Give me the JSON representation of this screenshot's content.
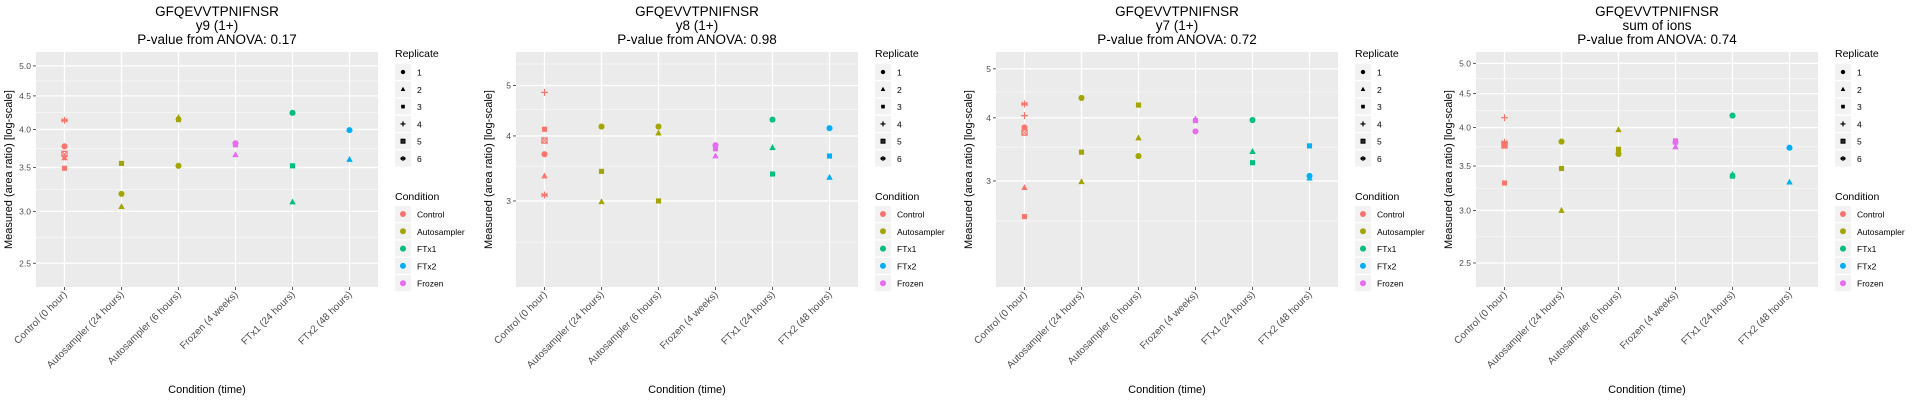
{
  "legend": {
    "replicate_title": "Replicate",
    "replicates": [
      {
        "label": "1",
        "shape": "circle"
      },
      {
        "label": "2",
        "shape": "triangle"
      },
      {
        "label": "3",
        "shape": "square"
      },
      {
        "label": "4",
        "shape": "plus"
      },
      {
        "label": "5",
        "shape": "square-cross"
      },
      {
        "label": "6",
        "shape": "asterisk"
      }
    ],
    "condition_title": "Condition",
    "conditions": [
      {
        "label": "Control",
        "color": "#F8766D"
      },
      {
        "label": "Autosampler",
        "color": "#A3A500"
      },
      {
        "label": "FTx1",
        "color": "#00BF7D"
      },
      {
        "label": "FTx2",
        "color": "#00B0F6"
      },
      {
        "label": "Frozen",
        "color": "#E76BF3"
      }
    ]
  },
  "chart_data": [
    {
      "type": "scatter",
      "title": "GFQEVVTPNIFNSR",
      "subtitle": "y9 (1+)",
      "pvalue_label": "P-value from ANOVA: 0.17",
      "xlabel": "Condition (time)",
      "ylabel": "Measured (area ratio) [log-scale]",
      "y_scale": "log",
      "ylim": [
        2.3,
        5.25
      ],
      "y_ticks": [
        2.5,
        3.0,
        3.5,
        4.0,
        4.5,
        5.0
      ],
      "y_tick_labels": [
        "2.5",
        "3.0",
        "3.5",
        "4.0",
        "4.5",
        "5.0"
      ],
      "grid": true,
      "legend_position": "right",
      "categories": [
        "Control (0 hour)",
        "Autosampler (24 hours)",
        "Autosampler (6 hours)",
        "Frozen (4 weeks)",
        "FTx1 (24 hours)",
        "FTx2 (48 hours)"
      ],
      "points": [
        {
          "x": 0,
          "y": 4.13,
          "replicate": 6,
          "condition": "Control"
        },
        {
          "x": 0,
          "y": 3.77,
          "replicate": 1,
          "condition": "Control"
        },
        {
          "x": 0,
          "y": 3.67,
          "replicate": 5,
          "condition": "Control"
        },
        {
          "x": 0,
          "y": 3.62,
          "replicate": 2,
          "condition": "Control"
        },
        {
          "x": 0,
          "y": 3.49,
          "replicate": 3,
          "condition": "Control"
        },
        {
          "x": 1,
          "y": 3.55,
          "replicate": 3,
          "condition": "Autosampler"
        },
        {
          "x": 1,
          "y": 3.19,
          "replicate": 1,
          "condition": "Autosampler"
        },
        {
          "x": 1,
          "y": 3.05,
          "replicate": 2,
          "condition": "Autosampler"
        },
        {
          "x": 2,
          "y": 4.17,
          "replicate": 2,
          "condition": "Autosampler"
        },
        {
          "x": 2,
          "y": 4.14,
          "replicate": 3,
          "condition": "Autosampler"
        },
        {
          "x": 2,
          "y": 3.52,
          "replicate": 1,
          "condition": "Autosampler"
        },
        {
          "x": 3,
          "y": 3.81,
          "replicate": 1,
          "condition": "Frozen"
        },
        {
          "x": 3,
          "y": 3.79,
          "replicate": 3,
          "condition": "Frozen"
        },
        {
          "x": 3,
          "y": 3.66,
          "replicate": 2,
          "condition": "Frozen"
        },
        {
          "x": 4,
          "y": 4.24,
          "replicate": 1,
          "condition": "FTx1"
        },
        {
          "x": 4,
          "y": 3.52,
          "replicate": 3,
          "condition": "FTx1"
        },
        {
          "x": 4,
          "y": 3.1,
          "replicate": 2,
          "condition": "FTx1"
        },
        {
          "x": 5,
          "y": 3.99,
          "replicate": 1,
          "condition": "FTx2"
        },
        {
          "x": 5,
          "y": 3.6,
          "replicate": 2,
          "condition": "FTx2"
        }
      ]
    },
    {
      "type": "scatter",
      "title": "GFQEVVTPNIFNSR",
      "subtitle": "y8 (1+)",
      "pvalue_label": "P-value from ANOVA: 0.98",
      "xlabel": "Condition (time)",
      "ylabel": "Measured (area ratio) [log-scale]",
      "y_scale": "log",
      "ylim": [
        2.05,
        5.8
      ],
      "y_ticks": [
        3,
        4,
        5
      ],
      "y_tick_labels": [
        "3",
        "4",
        "5"
      ],
      "y_minor": [
        2.5,
        3.5,
        4.5,
        5.5
      ],
      "grid": true,
      "legend_position": "right",
      "categories": [
        "Control (0 hour)",
        "Autosampler (24 hours)",
        "Autosampler (6 hours)",
        "Frozen (4 weeks)",
        "FTx1 (24 hours)",
        "FTx2 (48 hours)"
      ],
      "points": [
        {
          "x": 0,
          "y": 4.85,
          "replicate": 4,
          "condition": "Control"
        },
        {
          "x": 0,
          "y": 4.12,
          "replicate": 3,
          "condition": "Control"
        },
        {
          "x": 0,
          "y": 3.92,
          "replicate": 5,
          "condition": "Control"
        },
        {
          "x": 0,
          "y": 3.69,
          "replicate": 1,
          "condition": "Control"
        },
        {
          "x": 0,
          "y": 3.35,
          "replicate": 2,
          "condition": "Control"
        },
        {
          "x": 0,
          "y": 3.08,
          "replicate": 6,
          "condition": "Control"
        },
        {
          "x": 1,
          "y": 4.17,
          "replicate": 1,
          "condition": "Autosampler"
        },
        {
          "x": 1,
          "y": 3.42,
          "replicate": 3,
          "condition": "Autosampler"
        },
        {
          "x": 1,
          "y": 2.99,
          "replicate": 2,
          "condition": "Autosampler"
        },
        {
          "x": 2,
          "y": 4.17,
          "replicate": 1,
          "condition": "Autosampler"
        },
        {
          "x": 2,
          "y": 4.05,
          "replicate": 2,
          "condition": "Autosampler"
        },
        {
          "x": 2,
          "y": 3.0,
          "replicate": 3,
          "condition": "Autosampler"
        },
        {
          "x": 3,
          "y": 3.84,
          "replicate": 1,
          "condition": "Frozen"
        },
        {
          "x": 3,
          "y": 3.78,
          "replicate": 3,
          "condition": "Frozen"
        },
        {
          "x": 3,
          "y": 3.66,
          "replicate": 2,
          "condition": "Frozen"
        },
        {
          "x": 4,
          "y": 4.3,
          "replicate": 1,
          "condition": "FTx1"
        },
        {
          "x": 4,
          "y": 3.8,
          "replicate": 2,
          "condition": "FTx1"
        },
        {
          "x": 4,
          "y": 3.38,
          "replicate": 3,
          "condition": "FTx1"
        },
        {
          "x": 5,
          "y": 4.14,
          "replicate": 1,
          "condition": "FTx2"
        },
        {
          "x": 5,
          "y": 3.66,
          "replicate": 3,
          "condition": "FTx2"
        },
        {
          "x": 5,
          "y": 3.33,
          "replicate": 2,
          "condition": "FTx2"
        }
      ]
    },
    {
      "type": "scatter",
      "title": "GFQEVVTPNIFNSR",
      "subtitle": "y7 (1+)",
      "pvalue_label": "P-value from ANOVA: 0.72",
      "xlabel": "Condition (time)",
      "ylabel": "Measured (area ratio) [log-scale]",
      "y_scale": "log",
      "ylim": [
        1.85,
        5.4
      ],
      "y_ticks": [
        3,
        4,
        5
      ],
      "y_tick_labels": [
        "3",
        "4",
        "5"
      ],
      "y_minor": [
        2.5,
        3.5,
        4.5
      ],
      "grid": true,
      "legend_position": "right",
      "categories": [
        "Control (0 hour)",
        "Autosampler (24 hours)",
        "Autosampler (6 hours)",
        "Frozen (4 weeks)",
        "FTx1 (24 hours)",
        "FTx2 (48 hours)"
      ],
      "points": [
        {
          "x": 0,
          "y": 4.26,
          "replicate": 6,
          "condition": "Control"
        },
        {
          "x": 0,
          "y": 4.04,
          "replicate": 4,
          "condition": "Control"
        },
        {
          "x": 0,
          "y": 3.83,
          "replicate": 1,
          "condition": "Control"
        },
        {
          "x": 0,
          "y": 3.74,
          "replicate": 5,
          "condition": "Control"
        },
        {
          "x": 0,
          "y": 2.91,
          "replicate": 2,
          "condition": "Control"
        },
        {
          "x": 0,
          "y": 2.55,
          "replicate": 3,
          "condition": "Control"
        },
        {
          "x": 1,
          "y": 4.38,
          "replicate": 1,
          "condition": "Autosampler"
        },
        {
          "x": 1,
          "y": 3.42,
          "replicate": 3,
          "condition": "Autosampler"
        },
        {
          "x": 1,
          "y": 2.99,
          "replicate": 2,
          "condition": "Autosampler"
        },
        {
          "x": 2,
          "y": 4.24,
          "replicate": 3,
          "condition": "Autosampler"
        },
        {
          "x": 2,
          "y": 3.65,
          "replicate": 2,
          "condition": "Autosampler"
        },
        {
          "x": 2,
          "y": 3.36,
          "replicate": 1,
          "condition": "Autosampler"
        },
        {
          "x": 3,
          "y": 3.98,
          "replicate": 2,
          "condition": "Frozen"
        },
        {
          "x": 3,
          "y": 3.95,
          "replicate": 3,
          "condition": "Frozen"
        },
        {
          "x": 3,
          "y": 3.76,
          "replicate": 1,
          "condition": "Frozen"
        },
        {
          "x": 4,
          "y": 3.96,
          "replicate": 1,
          "condition": "FTx1"
        },
        {
          "x": 4,
          "y": 3.43,
          "replicate": 2,
          "condition": "FTx1"
        },
        {
          "x": 4,
          "y": 3.26,
          "replicate": 3,
          "condition": "FTx1"
        },
        {
          "x": 5,
          "y": 3.52,
          "replicate": 3,
          "condition": "FTx2"
        },
        {
          "x": 5,
          "y": 3.07,
          "replicate": 1,
          "condition": "FTx2"
        },
        {
          "x": 5,
          "y": 3.04,
          "replicate": 2,
          "condition": "FTx2"
        }
      ]
    },
    {
      "type": "scatter",
      "title": "GFQEVVTPNIFNSR",
      "subtitle": "sum of ions",
      "pvalue_label": "P-value from ANOVA: 0.74",
      "xlabel": "Condition (time)",
      "ylabel": "Measured (area ratio) [log-scale]",
      "y_scale": "log",
      "ylim": [
        2.3,
        5.2
      ],
      "y_ticks": [
        2.5,
        3.0,
        3.5,
        4.0,
        4.5,
        5.0
      ],
      "y_tick_labels": [
        "2.5",
        "3.0",
        "3.5",
        "4.0",
        "4.5",
        "5.0"
      ],
      "grid": true,
      "legend_position": "right",
      "categories": [
        "Control (0 hour)",
        "Autosampler (24 hours)",
        "Autosampler (6 hours)",
        "Frozen (4 weeks)",
        "FTx1 (24 hours)",
        "FTx2 (48 hours)"
      ],
      "points": [
        {
          "x": 0,
          "y": 4.14,
          "replicate": 4,
          "condition": "Control"
        },
        {
          "x": 0,
          "y": 3.8,
          "replicate": 6,
          "condition": "Control"
        },
        {
          "x": 0,
          "y": 3.79,
          "replicate": 2,
          "condition": "Control"
        },
        {
          "x": 0,
          "y": 3.77,
          "replicate": 1,
          "condition": "Control"
        },
        {
          "x": 0,
          "y": 3.76,
          "replicate": 5,
          "condition": "Control"
        },
        {
          "x": 0,
          "y": 3.3,
          "replicate": 3,
          "condition": "Control"
        },
        {
          "x": 1,
          "y": 3.81,
          "replicate": 1,
          "condition": "Autosampler"
        },
        {
          "x": 1,
          "y": 3.47,
          "replicate": 3,
          "condition": "Autosampler"
        },
        {
          "x": 1,
          "y": 3.0,
          "replicate": 2,
          "condition": "Autosampler"
        },
        {
          "x": 2,
          "y": 3.97,
          "replicate": 2,
          "condition": "Autosampler"
        },
        {
          "x": 2,
          "y": 3.71,
          "replicate": 3,
          "condition": "Autosampler"
        },
        {
          "x": 2,
          "y": 3.65,
          "replicate": 1,
          "condition": "Autosampler"
        },
        {
          "x": 3,
          "y": 3.82,
          "replicate": 3,
          "condition": "Frozen"
        },
        {
          "x": 3,
          "y": 3.8,
          "replicate": 1,
          "condition": "Frozen"
        },
        {
          "x": 3,
          "y": 3.74,
          "replicate": 2,
          "condition": "Frozen"
        },
        {
          "x": 4,
          "y": 4.17,
          "replicate": 1,
          "condition": "FTx1"
        },
        {
          "x": 4,
          "y": 3.4,
          "replicate": 2,
          "condition": "FTx1"
        },
        {
          "x": 4,
          "y": 3.38,
          "replicate": 3,
          "condition": "FTx1"
        },
        {
          "x": 5,
          "y": 3.73,
          "replicate": 1,
          "condition": "FTx2"
        },
        {
          "x": 5,
          "y": 3.31,
          "replicate": 2,
          "condition": "FTx2"
        }
      ]
    }
  ]
}
